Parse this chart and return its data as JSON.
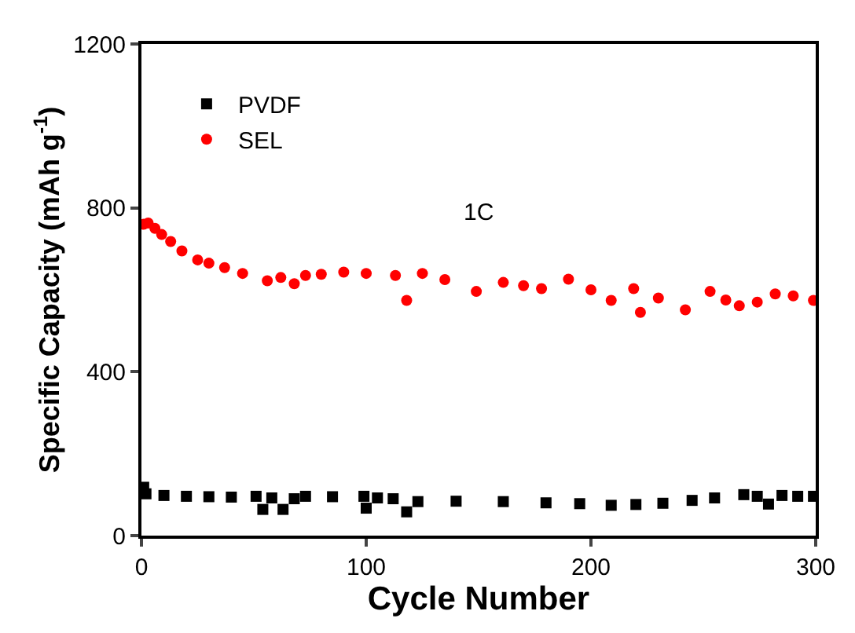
{
  "chart_data": {
    "type": "scatter",
    "xlabel": "Cycle Number",
    "ylabel": "Specific Capacity (mAh g$^{-1}$)",
    "xlim": [
      0,
      300
    ],
    "xticks": [
      0,
      100,
      200,
      300
    ],
    "ylim": [
      0,
      1200
    ],
    "yticks": [
      0,
      400,
      800,
      1200
    ],
    "legend": "top left",
    "annotations": [
      "1C"
    ],
    "series": [
      {
        "name": "PVDF",
        "color": "#000000",
        "marker": "square",
        "x": [
          1,
          2,
          10,
          20,
          30,
          40,
          51,
          54,
          58,
          63,
          68,
          73,
          85,
          99,
          100,
          105,
          112,
          118,
          123,
          140,
          161,
          180,
          195,
          209,
          220,
          232,
          245,
          255,
          268,
          274,
          279,
          285,
          292,
          299
        ],
        "values": [
          118,
          102,
          98,
          96,
          95,
          94,
          96,
          64,
          92,
          64,
          90,
          96,
          95,
          96,
          67,
          92,
          90,
          58,
          83,
          84,
          83,
          80,
          78,
          74,
          76,
          79,
          86,
          92,
          100,
          96,
          77,
          98,
          96,
          96
        ]
      },
      {
        "name": "SEL",
        "color": "#ff0000",
        "marker": "circle",
        "x": [
          1,
          3,
          6,
          9,
          13,
          18,
          25,
          30,
          37,
          45,
          56,
          62,
          68,
          73,
          80,
          90,
          100,
          113,
          118,
          125,
          135,
          149,
          161,
          170,
          178,
          190,
          200,
          209,
          219,
          222,
          230,
          242,
          253,
          260,
          266,
          274,
          282,
          290,
          299
        ],
        "values": [
          760,
          763,
          750,
          735,
          718,
          695,
          673,
          665,
          654,
          640,
          622,
          630,
          615,
          635,
          638,
          643,
          640,
          635,
          574,
          640,
          625,
          596,
          618,
          610,
          603,
          626,
          600,
          574,
          603,
          545,
          580,
          551,
          596,
          575,
          561,
          570,
          590,
          585,
          574
        ]
      }
    ]
  }
}
